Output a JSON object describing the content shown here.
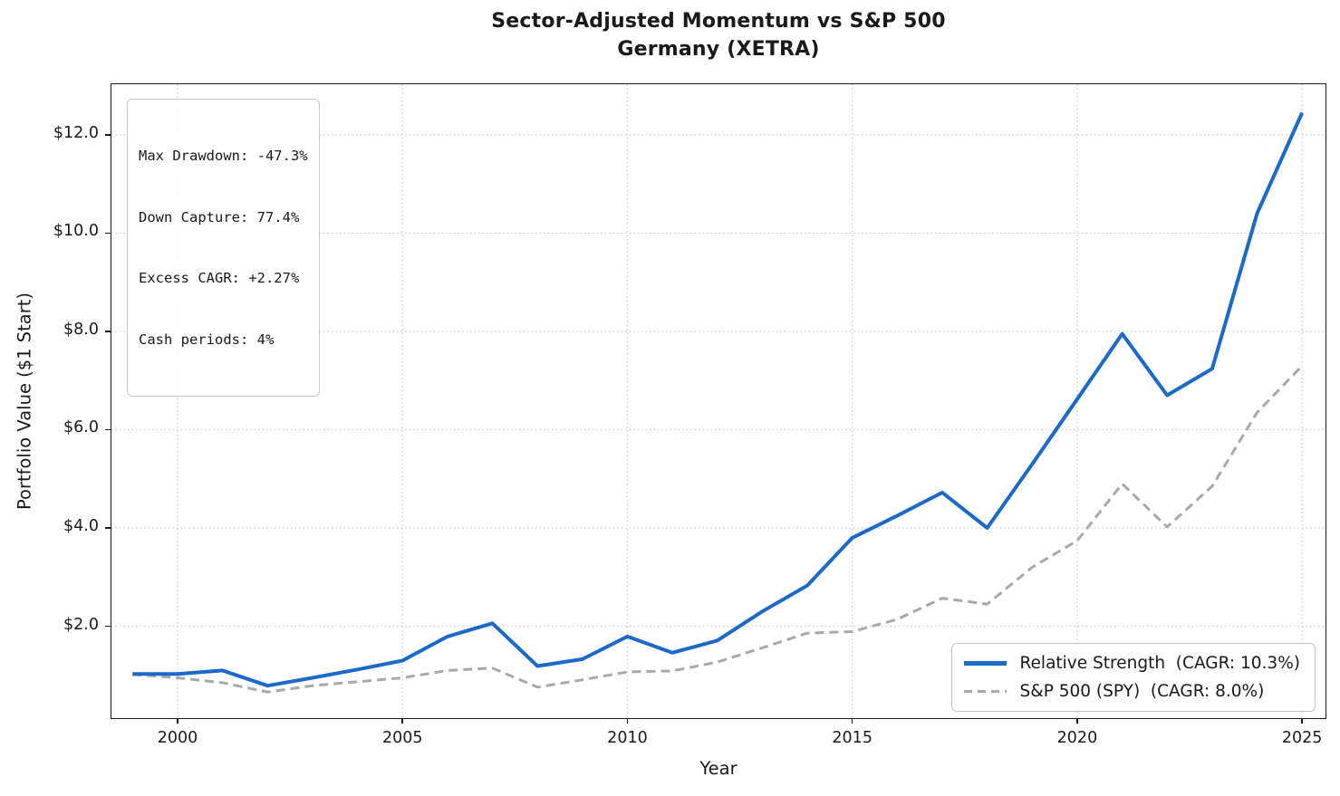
{
  "title": {
    "line1": "Sector-Adjusted Momentum vs S&P 500",
    "line2": "Germany (XETRA)"
  },
  "axes": {
    "xlabel": "Year",
    "ylabel": "Portfolio Value ($1 Start)"
  },
  "stats_box": {
    "lines": [
      "Max Drawdown: -47.3%",
      "Down Capture: 77.4%",
      "Excess CAGR: +2.27%",
      "Cash periods: 4%"
    ]
  },
  "legend": {
    "items": [
      {
        "label": "Relative Strength  (CAGR: 10.3%)"
      },
      {
        "label": "S&P 500 (SPY)  (CAGR: 8.0%)"
      }
    ]
  },
  "colors": {
    "strategy_line": "#1b6ac9",
    "benchmark_line": "#a9a9a9",
    "grid": "#cdcdcd",
    "spine": "#1a1a1a",
    "box_border": "#c8c8c8"
  },
  "chart_data": {
    "type": "line",
    "title": "Sector-Adjusted Momentum vs S&P 500 — Germany (XETRA)",
    "xlabel": "Year",
    "ylabel": "Portfolio Value ($1 Start)",
    "grid": true,
    "legend_position": "lower right",
    "xlim": [
      1998.53,
      2025.52
    ],
    "ylim": [
      0.13,
      13.03
    ],
    "xticks": [
      2000,
      2005,
      2010,
      2015,
      2020,
      2025
    ],
    "yticks": [
      2,
      4,
      6,
      8,
      10,
      12
    ],
    "ytick_labels": [
      "$2.0",
      "$4.0",
      "$6.0",
      "$8.0",
      "$10.0",
      "$12.0"
    ],
    "x": [
      1999,
      2000,
      2001,
      2002,
      2003,
      2004,
      2005,
      2006,
      2007,
      2008,
      2009,
      2010,
      2011,
      2012,
      2013,
      2014,
      2015,
      2016,
      2017,
      2018,
      2019,
      2020,
      2021,
      2022,
      2023,
      2024,
      2025
    ],
    "series": [
      {
        "name": "S&P 500 (SPY)  (CAGR: 8.0%)",
        "style": "dashed",
        "color": "#a9a9a9",
        "width": 3,
        "values": [
          1.02,
          0.95,
          0.85,
          0.66,
          0.79,
          0.87,
          0.95,
          1.1,
          1.15,
          0.76,
          0.91,
          1.07,
          1.09,
          1.27,
          1.56,
          1.86,
          1.89,
          2.14,
          2.57,
          2.45,
          3.2,
          3.74,
          4.9,
          4.02,
          4.85,
          6.35,
          7.3
        ]
      },
      {
        "name": "Relative Strength  (CAGR: 10.3%)",
        "style": "solid",
        "color": "#1b6ac9",
        "width": 4,
        "values": [
          1.03,
          1.03,
          1.1,
          0.79,
          0.95,
          1.12,
          1.3,
          1.79,
          2.06,
          1.19,
          1.33,
          1.79,
          1.46,
          1.71,
          2.3,
          2.83,
          3.8,
          4.25,
          4.72,
          4.0,
          5.3,
          6.62,
          7.95,
          6.7,
          7.24,
          10.4,
          12.45
        ]
      }
    ]
  }
}
